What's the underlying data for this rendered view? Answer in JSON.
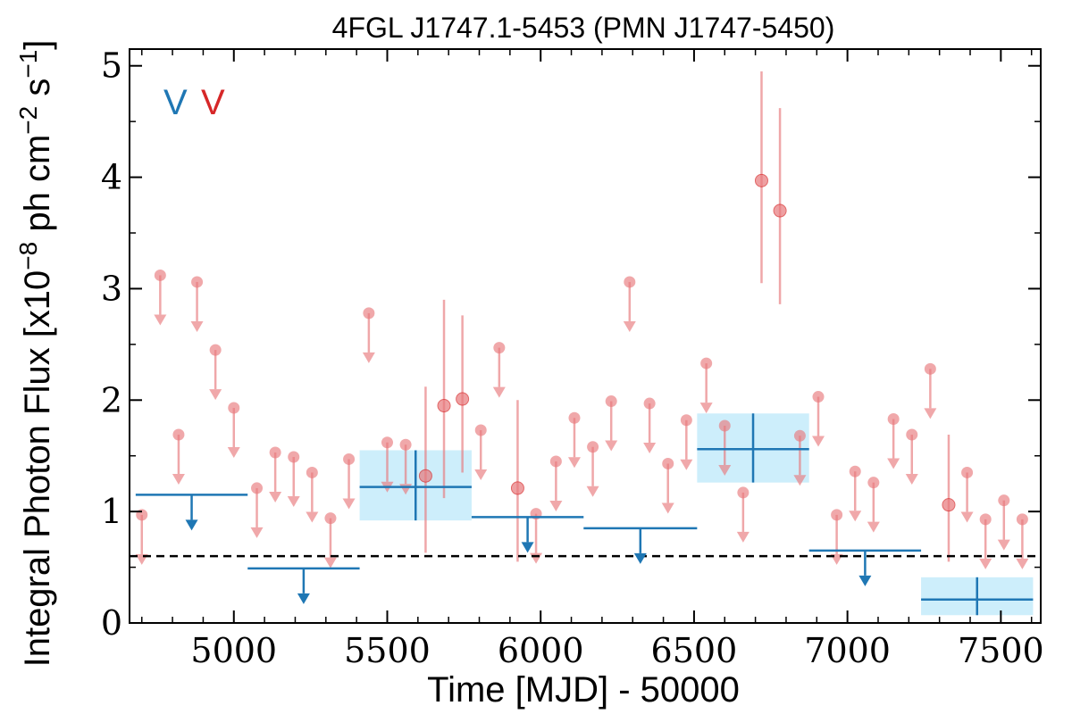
{
  "chart_data": {
    "type": "scatter",
    "title": "4FGL J1747.1-5453 (PMN J1747-5450)",
    "xlabel": "Time [MJD] - 50000",
    "ylabel_main": "Integral Photon Flux [x10",
    "ylabel_exp1": "−8",
    "ylabel_mid": " ph cm",
    "ylabel_exp2": "−2",
    "ylabel_s": " s",
    "ylabel_exp3": "−1",
    "ylabel_close": "]",
    "xlim": [
      4660,
      7630
    ],
    "ylim": [
      0,
      5.15
    ],
    "x_ticks": [
      5000,
      5500,
      6000,
      6500,
      7000,
      7500
    ],
    "y_ticks": [
      0,
      1,
      2,
      3,
      4,
      5
    ],
    "legend": [
      {
        "label": "V",
        "color": "#1f77b4"
      },
      {
        "label": "V",
        "color": "#d62728"
      }
    ],
    "reference_line": {
      "y": 0.6,
      "style": "dashed",
      "color": "#000000"
    },
    "colors": {
      "blue": "#1f77b4",
      "red": "#e8797c",
      "band": "#cdeefb"
    },
    "blue_detections": [
      {
        "x_start": 5410,
        "x_end": 5775,
        "y": 1.22,
        "y_low": 0.92,
        "y_high": 1.55
      },
      {
        "x_start": 6510,
        "x_end": 6875,
        "y": 1.56,
        "y_low": 1.26,
        "y_high": 1.88
      },
      {
        "x_start": 7240,
        "x_end": 7605,
        "y": 0.21,
        "y_low": 0.07,
        "y_high": 0.41
      }
    ],
    "blue_upper_limits": [
      {
        "x_start": 4680,
        "x_end": 5045,
        "y": 1.15
      },
      {
        "x_start": 5045,
        "x_end": 5410,
        "y": 0.49
      },
      {
        "x_start": 5775,
        "x_end": 6140,
        "y": 0.95
      },
      {
        "x_start": 6140,
        "x_end": 6510,
        "y": 0.85
      },
      {
        "x_start": 6875,
        "x_end": 7240,
        "y": 0.65
      }
    ],
    "red_detections": [
      {
        "x": 5625,
        "y": 1.32,
        "y_low": 0.63,
        "y_high": 2.12
      },
      {
        "x": 5685,
        "y": 1.95,
        "y_low": 1.12,
        "y_high": 2.9
      },
      {
        "x": 5745,
        "y": 2.01,
        "y_low": 1.35,
        "y_high": 2.76
      },
      {
        "x": 5925,
        "y": 1.21,
        "y_low": 0.55,
        "y_high": 2.0
      },
      {
        "x": 6720,
        "y": 3.97,
        "y_low": 3.05,
        "y_high": 4.95
      },
      {
        "x": 6780,
        "y": 3.7,
        "y_low": 2.86,
        "y_high": 4.62
      },
      {
        "x": 7330,
        "y": 1.06,
        "y_low": 0.55,
        "y_high": 1.69
      }
    ],
    "red_upper_limits": [
      {
        "x": 4700,
        "y": 0.97
      },
      {
        "x": 4760,
        "y": 3.12
      },
      {
        "x": 4820,
        "y": 1.69
      },
      {
        "x": 4880,
        "y": 3.06
      },
      {
        "x": 4940,
        "y": 2.45
      },
      {
        "x": 5000,
        "y": 1.93
      },
      {
        "x": 5075,
        "y": 1.21
      },
      {
        "x": 5135,
        "y": 1.53
      },
      {
        "x": 5195,
        "y": 1.49
      },
      {
        "x": 5255,
        "y": 1.35
      },
      {
        "x": 5315,
        "y": 0.94
      },
      {
        "x": 5375,
        "y": 1.47
      },
      {
        "x": 5440,
        "y": 2.78
      },
      {
        "x": 5500,
        "y": 1.62
      },
      {
        "x": 5560,
        "y": 1.6
      },
      {
        "x": 5805,
        "y": 1.73
      },
      {
        "x": 5865,
        "y": 2.47
      },
      {
        "x": 5985,
        "y": 0.98
      },
      {
        "x": 6050,
        "y": 1.45
      },
      {
        "x": 6110,
        "y": 1.84
      },
      {
        "x": 6170,
        "y": 1.58
      },
      {
        "x": 6230,
        "y": 1.99
      },
      {
        "x": 6290,
        "y": 3.06
      },
      {
        "x": 6355,
        "y": 1.97
      },
      {
        "x": 6415,
        "y": 1.43
      },
      {
        "x": 6475,
        "y": 1.82
      },
      {
        "x": 6540,
        "y": 2.33
      },
      {
        "x": 6600,
        "y": 1.77
      },
      {
        "x": 6660,
        "y": 1.17
      },
      {
        "x": 6845,
        "y": 1.68
      },
      {
        "x": 6905,
        "y": 2.03
      },
      {
        "x": 6965,
        "y": 0.97
      },
      {
        "x": 7025,
        "y": 1.36
      },
      {
        "x": 7085,
        "y": 1.26
      },
      {
        "x": 7150,
        "y": 1.83
      },
      {
        "x": 7210,
        "y": 1.69
      },
      {
        "x": 7270,
        "y": 2.28
      },
      {
        "x": 7390,
        "y": 1.35
      },
      {
        "x": 7450,
        "y": 0.93
      },
      {
        "x": 7510,
        "y": 1.1
      },
      {
        "x": 7570,
        "y": 0.93
      }
    ]
  }
}
